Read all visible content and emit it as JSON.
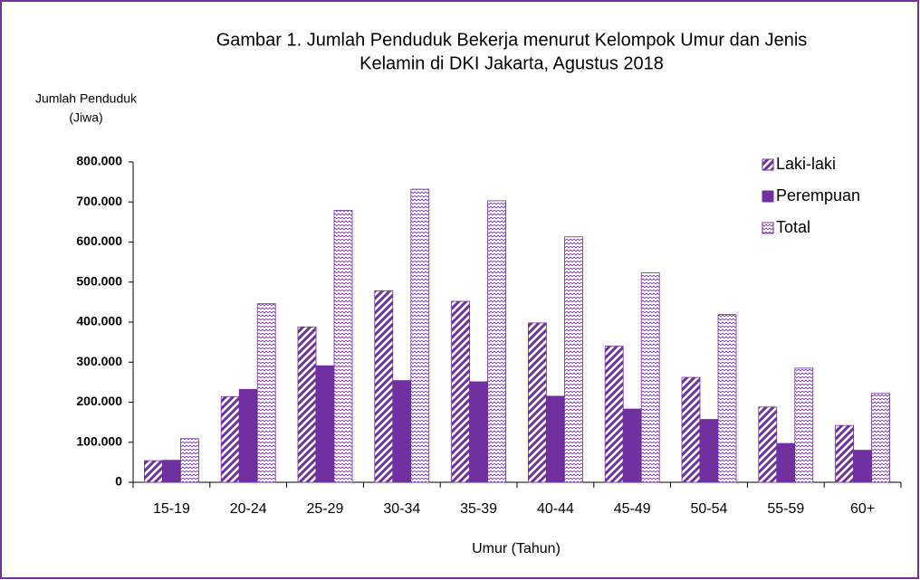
{
  "chart_data": {
    "type": "bar",
    "title": [
      "Gambar 1. Jumlah Penduduk Bekerja menurut Kelompok Umur dan Jenis",
      "Kelamin di DKI Jakarta, Agustus 2018"
    ],
    "y_label": [
      "Jumlah Penduduk",
      "(Jiwa)"
    ],
    "x_label": "Umur (Tahun)",
    "categories": [
      "15-19",
      "20-24",
      "25-29",
      "30-34",
      "35-39",
      "40-44",
      "45-49",
      "50-54",
      "55-59",
      "60+"
    ],
    "series": [
      {
        "name": "Laki-laki",
        "color": "#7030a0",
        "pattern": "diagonal",
        "values": [
          54000,
          214000,
          388000,
          478000,
          452000,
          398000,
          340000,
          262000,
          188000,
          142000
        ]
      },
      {
        "name": "Perempuan",
        "color": "#7030a0",
        "pattern": "solid",
        "values": [
          55000,
          232000,
          291000,
          254000,
          251000,
          215000,
          183000,
          157000,
          97000,
          80000
        ]
      },
      {
        "name": "Total",
        "color": "#7030a0",
        "pattern": "zigzag",
        "values": [
          109000,
          446000,
          679000,
          732000,
          703000,
          613000,
          523000,
          419000,
          285000,
          222000
        ]
      }
    ],
    "ylim": [
      0,
      800000
    ],
    "yticks": [
      {
        "value": 0,
        "label": "0"
      },
      {
        "value": 100000,
        "label": "100.000"
      },
      {
        "value": 200000,
        "label": "200.000"
      },
      {
        "value": 300000,
        "label": "300.000"
      },
      {
        "value": 400000,
        "label": "400.000"
      },
      {
        "value": 500000,
        "label": "500.000"
      },
      {
        "value": 600000,
        "label": "600.000"
      },
      {
        "value": 700000,
        "label": "700.000"
      },
      {
        "value": 800000,
        "label": "800.000"
      }
    ],
    "legend": "top-right",
    "grid": false
  }
}
